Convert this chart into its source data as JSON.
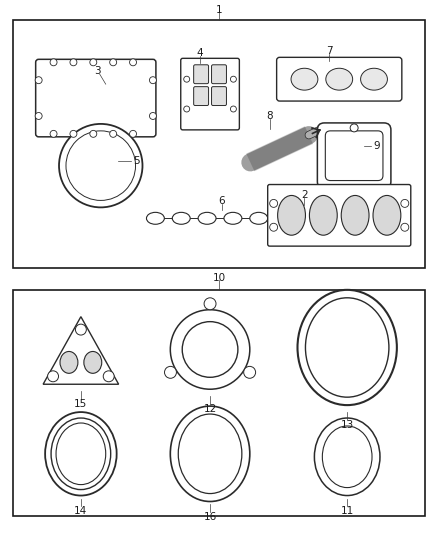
{
  "background_color": "#ffffff",
  "border_color": "#1a1a1a",
  "text_color": "#1a1a1a",
  "fig_width": 4.38,
  "fig_height": 5.33,
  "dpi": 100
}
